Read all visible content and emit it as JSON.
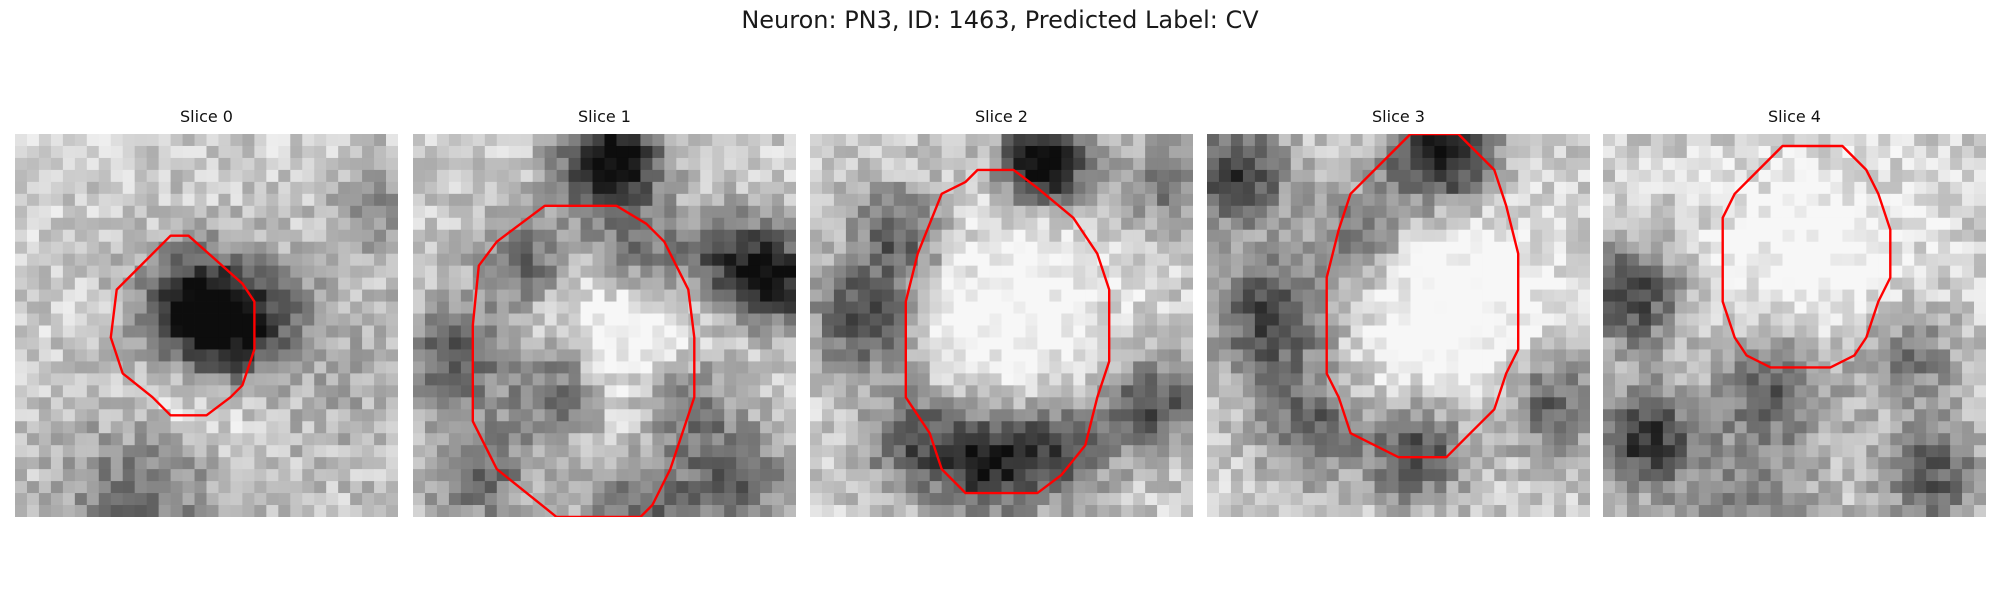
{
  "figure": {
    "title": "Neuron: PN3, ID: 1463, Predicted Label: CV",
    "contour_color": "#ff0000"
  },
  "panels": [
    {
      "title": "Slice 0"
    },
    {
      "title": "Slice 1"
    },
    {
      "title": "Slice 2"
    },
    {
      "title": "Slice 3"
    },
    {
      "title": "Slice 4"
    }
  ]
}
